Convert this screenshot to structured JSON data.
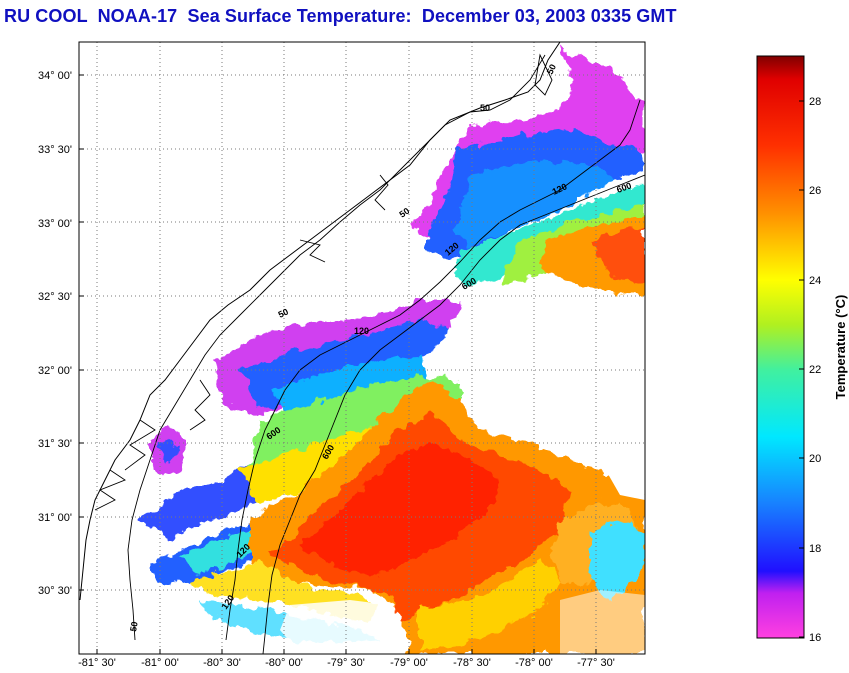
{
  "title": "RU COOL  NOAA-17  Sea Surface Temperature:  December 03, 2003 0335 GMT",
  "map": {
    "lat_labels": [
      "34° 00'",
      "33° 30'",
      "33° 00'",
      "32° 30'",
      "32° 00'",
      "31° 30'",
      "31° 00'",
      "30° 30'"
    ],
    "lon_labels": [
      "-81° 30'",
      "-81° 00'",
      "-80° 30'",
      "-80° 00'",
      "-79° 30'",
      "-79° 00'",
      "-78° 30'",
      "-78° 00'",
      "-77° 30'"
    ],
    "contour_labels": [
      "50",
      "50",
      "50",
      "50",
      "50",
      "120",
      "120",
      "120",
      "120",
      "120",
      "600",
      "600",
      "600",
      "600"
    ]
  },
  "colorbar": {
    "label": "Temperature (°C)",
    "ticks": [
      "28",
      "26",
      "24",
      "22",
      "20",
      "18",
      "16"
    ],
    "min": 16,
    "max": 29,
    "colors": {
      "16": "#ff40e0",
      "17": "#7020f0",
      "17.5": "#2010ff",
      "19": "#1880ff",
      "20.5": "#00e8ff",
      "22": "#40f0a0",
      "23": "#b0f020",
      "24": "#ffff00",
      "25.5": "#ff9000",
      "27": "#ff3000",
      "28.5": "#e00000",
      "29": "#800000"
    }
  }
}
